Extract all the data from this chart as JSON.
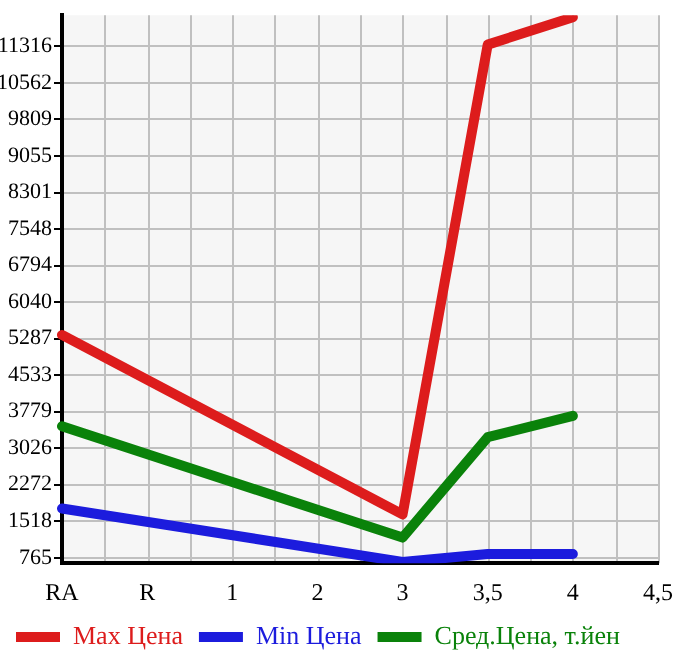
{
  "chart_data": {
    "type": "line",
    "categories": [
      "RA",
      "R",
      "1",
      "2",
      "3",
      "3,5",
      "4",
      "4,5"
    ],
    "series": [
      {
        "name": "Max Цена",
        "color": "#dd1c1c",
        "values": [
          5362,
          null,
          null,
          null,
          1658,
          11353,
          11918,
          null
        ]
      },
      {
        "name": "Min Цена",
        "color": "#1c1cdd",
        "values": [
          1782,
          null,
          null,
          null,
          678,
          840,
          840,
          null
        ]
      },
      {
        "name": "Сред.Цена, т.йен",
        "color": "#0a820a",
        "values": [
          3478,
          null,
          null,
          null,
          1180,
          3252,
          3693,
          null
        ]
      }
    ],
    "ylim": [
      652,
      11960
    ],
    "yticks": [
      765,
      1518,
      2272,
      3026,
      3779,
      4533,
      5287,
      6040,
      6794,
      7548,
      8301,
      9055,
      9809,
      10562,
      11316
    ],
    "grid": true,
    "legend": "bottom",
    "marker": "none",
    "line_style": "solid"
  }
}
